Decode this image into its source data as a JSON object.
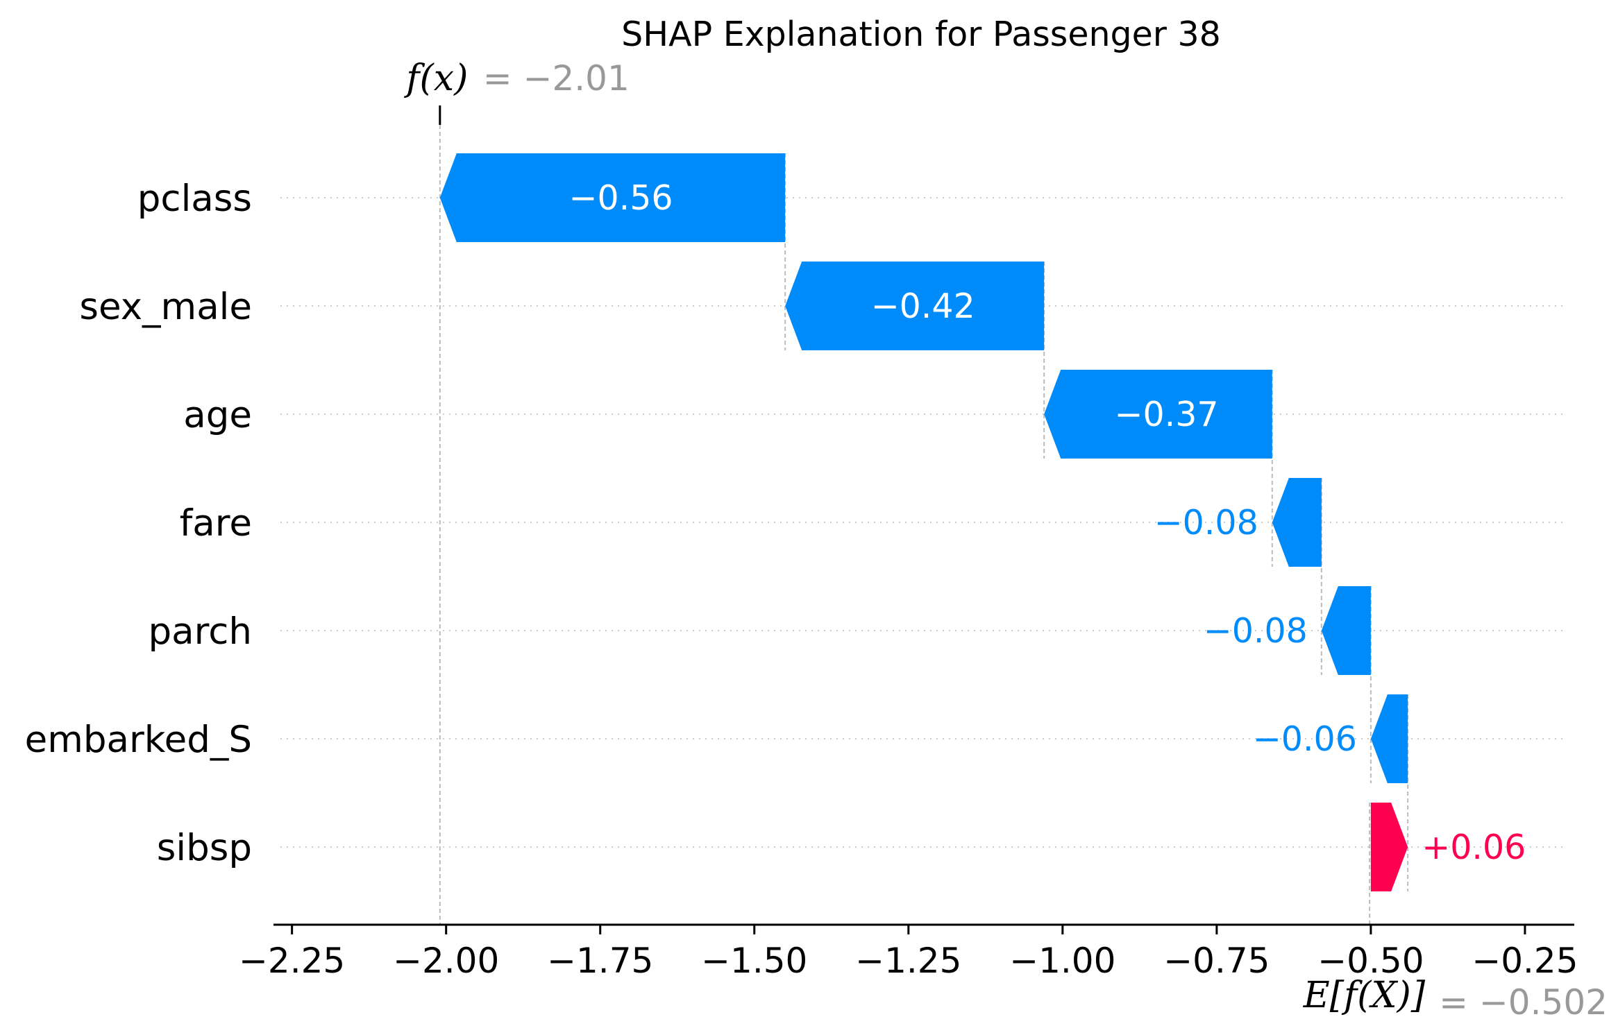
{
  "chart_data": {
    "type": "waterfall",
    "title": "SHAP Explanation for Passenger 38",
    "features": [
      {
        "name": "pclass",
        "value": -0.56,
        "label": "−0.56"
      },
      {
        "name": "sex_male",
        "value": -0.42,
        "label": "−0.42"
      },
      {
        "name": "age",
        "value": -0.37,
        "label": "−0.37"
      },
      {
        "name": "fare",
        "value": -0.08,
        "label": "−0.08"
      },
      {
        "name": "parch",
        "value": -0.08,
        "label": "−0.08"
      },
      {
        "name": "embarked_S",
        "value": -0.06,
        "label": "−0.06"
      },
      {
        "name": "sibsp",
        "value": 0.06,
        "label": "+0.06"
      }
    ],
    "base_value": -0.502,
    "output_value": -2.01,
    "base_label": {
      "symbol": "E[f(X)]",
      "value_text": "= −0.502"
    },
    "output_label": {
      "symbol": "f(x)",
      "value_text": "= −2.01"
    },
    "xlim": [
      -2.28,
      -0.17
    ],
    "xticks": [
      -2.25,
      -2.0,
      -1.75,
      -1.5,
      -1.25,
      -1.0,
      -0.75,
      -0.5,
      -0.25
    ],
    "xtick_labels": [
      "−2.25",
      "−2.00",
      "−1.75",
      "−1.50",
      "−1.25",
      "−1.00",
      "−0.75",
      "−0.50",
      "−0.25"
    ],
    "grid": "horizontal dotted",
    "colors": {
      "negative": "#008bfb",
      "positive": "#ff0051",
      "annotation": "#999999",
      "dashed": "#bbbbbb"
    }
  }
}
